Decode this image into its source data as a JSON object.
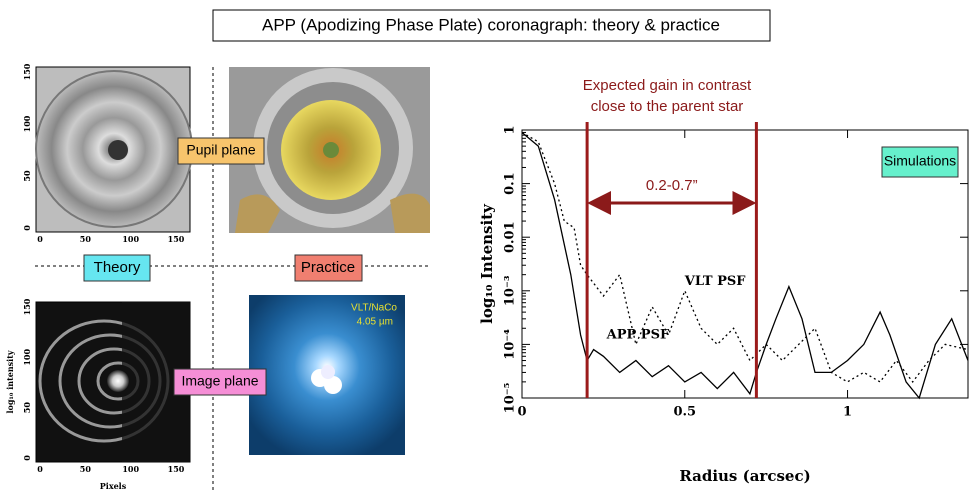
{
  "title": "APP (Apodizing Phase Plate) coronagraph: theory & practice",
  "panels": {
    "pupil_label": "Pupil plane",
    "image_label": "Image plane",
    "theory_label": "Theory",
    "practice_label": "Practice",
    "instrument": "VLT/NaCo",
    "wavelength": "4.05 µm",
    "axis_ticks": [
      0,
      50,
      100,
      150
    ],
    "xlabel": "Pixels",
    "ylabel": "log₁₀ intensity"
  },
  "chart_data": {
    "type": "line",
    "xlabel": "Radius (arcsec)",
    "ylabel": "log₁₀ Intensity",
    "log_y": true,
    "xlim": [
      0,
      1.37
    ],
    "ylim": [
      1e-05,
      1
    ],
    "xticks": [
      0,
      0.5,
      1
    ],
    "yticks": [
      {
        "value": 1,
        "label": "1"
      },
      {
        "value": 0.1,
        "label": "0.1"
      },
      {
        "value": 0.01,
        "label": "0.01"
      },
      {
        "value": 0.001,
        "label": "10⁻³"
      },
      {
        "value": 0.0001,
        "label": "10⁻⁴"
      },
      {
        "value": 1e-05,
        "label": "10⁻⁵"
      }
    ],
    "annotation": "Expected gain in contrast close to the parent star",
    "range": [
      0.2,
      0.72
    ],
    "range_label": "0.2-0.7”",
    "box_label": "Simulations",
    "series": [
      {
        "name": "APP PSF",
        "color": "#000000",
        "style": "solid",
        "x": [
          0,
          0.05,
          0.1,
          0.15,
          0.18,
          0.2,
          0.22,
          0.25,
          0.3,
          0.35,
          0.4,
          0.45,
          0.5,
          0.55,
          0.6,
          0.65,
          0.7,
          0.72,
          0.75,
          0.78,
          0.82,
          0.86,
          0.9,
          0.95,
          1.0,
          1.05,
          1.1,
          1.13,
          1.18,
          1.22,
          1.27,
          1.32,
          1.37
        ],
        "values": [
          0.9,
          0.5,
          0.05,
          0.002,
          0.00015,
          5e-05,
          8e-05,
          6e-05,
          3e-05,
          5e-05,
          2.5e-05,
          4e-05,
          2e-05,
          3e-05,
          1.5e-05,
          3e-05,
          1.2e-05,
          3e-05,
          0.0001,
          0.0003,
          0.0012,
          0.0003,
          3e-05,
          3e-05,
          5e-05,
          0.0001,
          0.0004,
          0.00015,
          2e-05,
          1e-05,
          0.0001,
          0.0003,
          5e-05
        ]
      },
      {
        "name": "VLT PSF",
        "color": "#000000",
        "style": "dotted",
        "x": [
          0,
          0.05,
          0.1,
          0.13,
          0.16,
          0.18,
          0.2,
          0.25,
          0.3,
          0.35,
          0.4,
          0.45,
          0.5,
          0.55,
          0.6,
          0.65,
          0.7,
          0.75,
          0.8,
          0.85,
          0.9,
          0.95,
          1.0,
          1.05,
          1.1,
          1.15,
          1.2,
          1.25,
          1.3,
          1.37
        ],
        "values": [
          0.9,
          0.6,
          0.1,
          0.02,
          0.015,
          0.003,
          0.002,
          0.0008,
          0.002,
          0.0001,
          0.0005,
          0.00015,
          0.001,
          0.0002,
          0.0001,
          0.0002,
          5e-05,
          0.0001,
          5e-05,
          0.0001,
          0.0002,
          3e-05,
          2e-05,
          3e-05,
          2e-05,
          5e-05,
          2e-05,
          5e-05,
          0.0001,
          8e-05
        ]
      }
    ]
  }
}
